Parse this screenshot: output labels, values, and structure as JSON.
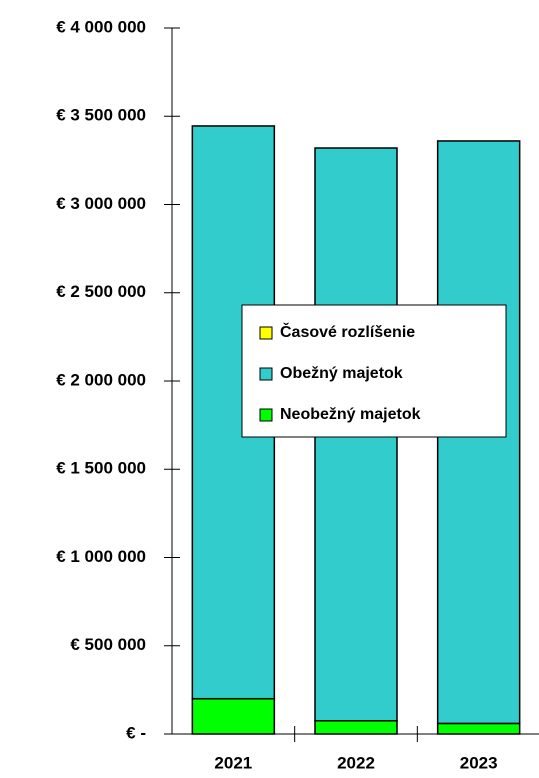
{
  "chart_data": {
    "type": "stacked_bar",
    "categories": [
      "2021",
      "2022",
      "2023"
    ],
    "series": [
      {
        "name": "Neobežný majetok",
        "color": "#00ff00",
        "values": [
          200000,
          75000,
          60000
        ]
      },
      {
        "name": "Obežný majetok",
        "color": "#33cccc",
        "values": [
          3245000,
          3245000,
          3300000
        ]
      },
      {
        "name": "Časové rozlíšenie",
        "color": "#ffff00",
        "values": [
          0,
          0,
          0
        ]
      }
    ],
    "ylim": [
      0,
      4000000
    ],
    "yticks": [
      {
        "value": 0,
        "label": "€ -"
      },
      {
        "value": 500000,
        "label": "€ 500 000"
      },
      {
        "value": 1000000,
        "label": "€ 1 000 000"
      },
      {
        "value": 1500000,
        "label": "€ 1 500 000"
      },
      {
        "value": 2000000,
        "label": "€ 2 000 000"
      },
      {
        "value": 2500000,
        "label": "€ 2 500 000"
      },
      {
        "value": 3000000,
        "label": "€ 3 000 000"
      },
      {
        "value": 3500000,
        "label": "€ 3 500 000"
      },
      {
        "value": 4000000,
        "label": "€ 4 000 000"
      }
    ],
    "legend": "center"
  }
}
